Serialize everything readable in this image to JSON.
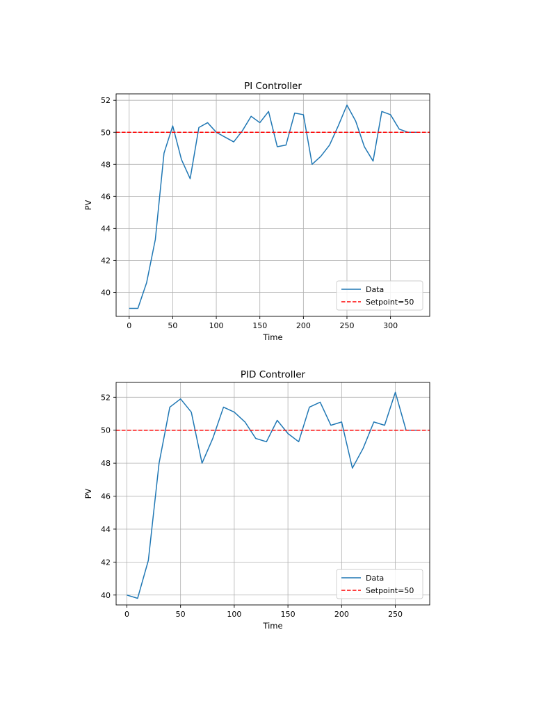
{
  "colors": {
    "data": "#1f77b4",
    "setpoint": "#ff0000",
    "grid": "#b0b0b0"
  },
  "chart_data": [
    {
      "type": "line",
      "title": "PI Controller",
      "xlabel": "Time",
      "ylabel": "PV",
      "xlim": [
        -15,
        345
      ],
      "ylim": [
        38.5,
        52.4
      ],
      "xticks": [
        0,
        50,
        100,
        150,
        200,
        250,
        300
      ],
      "yticks": [
        40,
        42,
        44,
        46,
        48,
        50,
        52
      ],
      "grid": true,
      "legend": {
        "placement": "lower-right",
        "entries": [
          "Data",
          "Setpoint=50"
        ]
      },
      "series": [
        {
          "name": "Data",
          "x": [
            0,
            10,
            20,
            30,
            40,
            50,
            60,
            70,
            80,
            90,
            100,
            110,
            120,
            130,
            140,
            150,
            160,
            170,
            180,
            190,
            200,
            210,
            220,
            230,
            240,
            250,
            260,
            270,
            280,
            290,
            300,
            310,
            320,
            330
          ],
          "y": [
            39.0,
            39.0,
            40.6,
            43.3,
            48.7,
            50.4,
            48.3,
            47.1,
            50.3,
            50.6,
            50.0,
            49.7,
            49.4,
            50.1,
            51.0,
            50.6,
            51.3,
            49.1,
            49.2,
            51.2,
            51.1,
            48.0,
            48.5,
            49.2,
            50.4,
            51.7,
            50.7,
            49.1,
            48.2,
            51.3,
            51.1,
            50.2,
            50.0,
            50.0
          ]
        },
        {
          "name": "Setpoint=50",
          "value": 50
        }
      ]
    },
    {
      "type": "line",
      "title": "PID Controller",
      "xlabel": "Time",
      "ylabel": "PV",
      "xlim": [
        -10,
        282
      ],
      "ylim": [
        39.4,
        52.9
      ],
      "xticks": [
        0,
        50,
        100,
        150,
        200,
        250
      ],
      "yticks": [
        40,
        42,
        44,
        46,
        48,
        50,
        52
      ],
      "grid": true,
      "legend": {
        "placement": "lower-right",
        "entries": [
          "Data",
          "Setpoint=50"
        ]
      },
      "series": [
        {
          "name": "Data",
          "x": [
            0,
            10,
            20,
            30,
            40,
            50,
            60,
            70,
            80,
            90,
            100,
            110,
            120,
            130,
            140,
            150,
            160,
            170,
            180,
            190,
            200,
            210,
            220,
            230,
            240,
            250,
            260,
            270
          ],
          "y": [
            40.0,
            39.8,
            42.1,
            48.0,
            51.4,
            51.9,
            51.1,
            48.0,
            49.5,
            51.4,
            51.1,
            50.5,
            49.5,
            49.3,
            50.6,
            49.8,
            49.3,
            51.4,
            51.7,
            50.3,
            50.5,
            47.7,
            48.9,
            50.5,
            50.3,
            52.3,
            50.0,
            50.0
          ]
        },
        {
          "name": "Setpoint=50",
          "value": 50
        }
      ]
    }
  ]
}
